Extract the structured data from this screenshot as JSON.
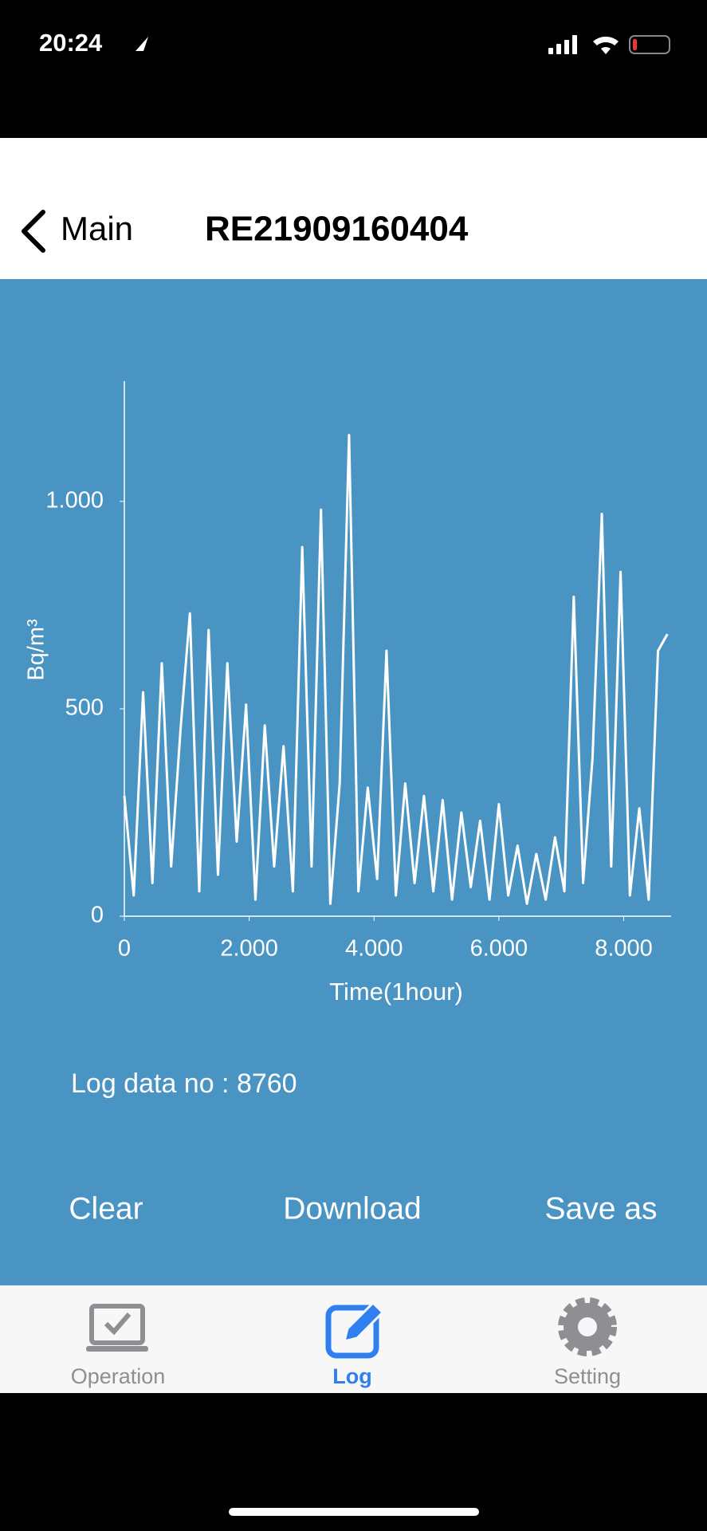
{
  "status_bar": {
    "time": "20:24"
  },
  "nav": {
    "back": "Main",
    "title": "RE21909160404"
  },
  "chart_data": {
    "type": "line",
    "x_label": "Time(1hour)",
    "y_label": "Bq/m³",
    "x": [
      0,
      150,
      300,
      450,
      600,
      750,
      900,
      1050,
      1200,
      1350,
      1500,
      1650,
      1800,
      1950,
      2100,
      2250,
      2400,
      2550,
      2700,
      2850,
      3000,
      3150,
      3300,
      3450,
      3600,
      3750,
      3900,
      4050,
      4200,
      4350,
      4500,
      4650,
      4800,
      4950,
      5100,
      5250,
      5400,
      5550,
      5700,
      5850,
      6000,
      6150,
      6300,
      6450,
      6600,
      6750,
      6900,
      7050,
      7200,
      7350,
      7500,
      7650,
      7800,
      7950,
      8100,
      8250,
      8400,
      8550,
      8700
    ],
    "series": [
      {
        "color": "#ffffff",
        "values": [
          290,
          50,
          540,
          80,
          610,
          120,
          450,
          730,
          60,
          690,
          100,
          610,
          180,
          510,
          40,
          460,
          120,
          410,
          60,
          890,
          120,
          980,
          30,
          320,
          1160,
          60,
          310,
          90,
          640,
          50,
          320,
          80,
          290,
          60,
          280,
          40,
          250,
          70,
          230,
          40,
          270,
          50,
          170,
          30,
          150,
          40,
          190,
          60,
          770,
          80,
          380,
          970,
          120,
          830,
          50,
          260,
          40,
          640,
          680
        ]
      }
    ],
    "xlim": [
      0,
      8760
    ],
    "ylim": [
      0,
      1290
    ],
    "xticks": [
      0,
      {
        "value": 2000,
        "label": "2.000"
      },
      {
        "value": 4000,
        "label": "4.000"
      },
      {
        "value": 6000,
        "label": "6.000"
      },
      {
        "value": 8000,
        "label": "8.000"
      }
    ],
    "yticks": [
      0,
      500,
      {
        "value": 1000,
        "label": "1.000"
      }
    ],
    "grid": false
  },
  "log_info": "Log data no : 8760",
  "actions": [
    "Clear",
    "Download",
    "Save as"
  ],
  "tabs": [
    {
      "label": "Operation"
    },
    {
      "label": "Log"
    },
    {
      "label": "Setting"
    }
  ]
}
